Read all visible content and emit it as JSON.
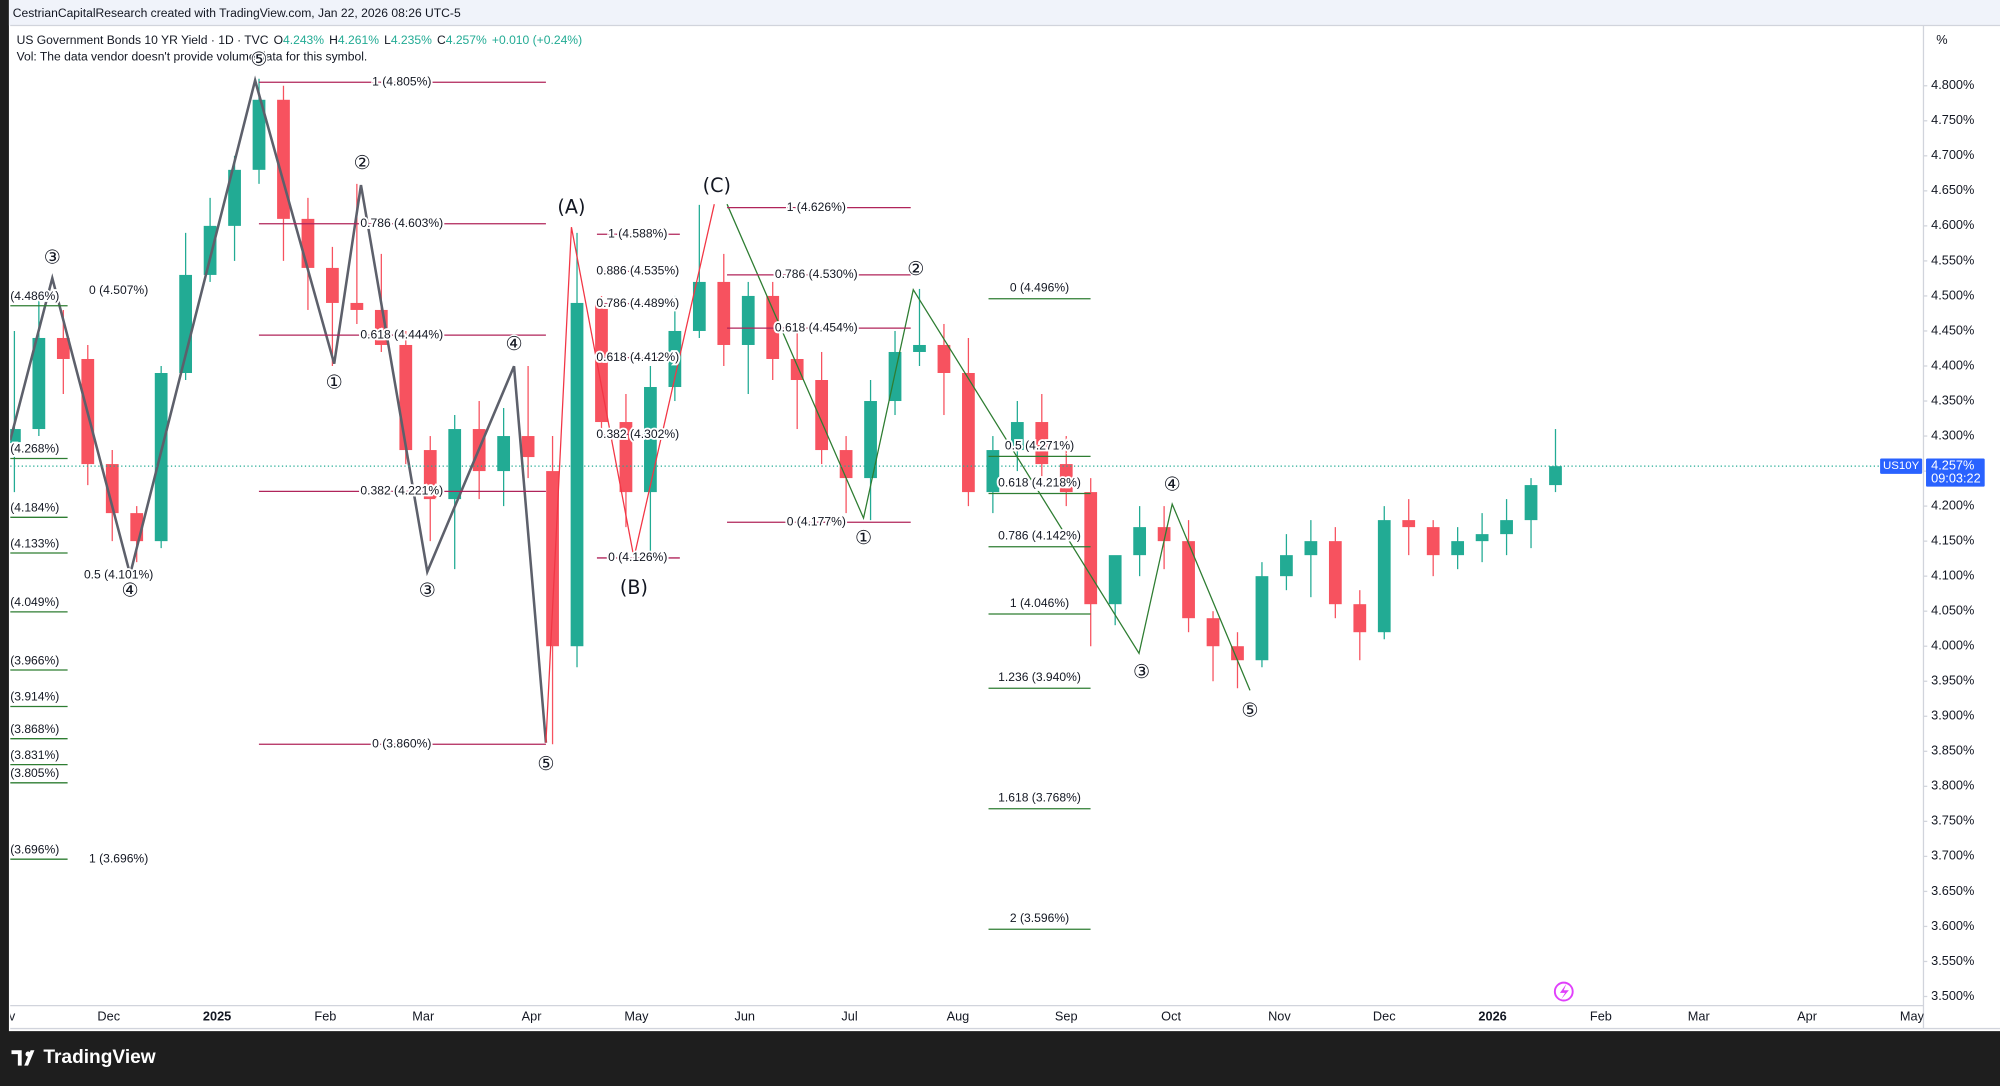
{
  "header": {
    "attribution": "CestrianCapitalResearch created with TradingView.com, Jan 22, 2026 08:26 UTC-5"
  },
  "footer": {
    "brand": "TradingView"
  },
  "chart_data": {
    "type": "candlestick",
    "title": "US Government Bonds 10 YR Yield · 1D · TVC",
    "ohlc_legend": [
      {
        "key": "O",
        "value": "4.243%"
      },
      {
        "key": "H",
        "value": "4.261%"
      },
      {
        "key": "L",
        "value": "4.235%"
      },
      {
        "key": "C",
        "value": "4.257%"
      }
    ],
    "change": "+0.010 (+0.24%)",
    "note": "Vol: The data vendor doesn't provide volume data for this symbol.",
    "axis_unit": "%",
    "symbol": "US10Y",
    "last_price": {
      "value": 4.257,
      "label": "4.257%"
    },
    "countdown": "09:03:22",
    "up_color": "#22ab94",
    "down_color": "#f7525f",
    "x": [
      3,
      10,
      17,
      24,
      31,
      38,
      45,
      52,
      59,
      66,
      73,
      80,
      87,
      94,
      101,
      108,
      115,
      122,
      129,
      136,
      143,
      150,
      157,
      164,
      171,
      178,
      185,
      192,
      199,
      206,
      213,
      220,
      227,
      234,
      241,
      248,
      255,
      262,
      269,
      276,
      283,
      290,
      297,
      304,
      311,
      318,
      325,
      332,
      339,
      346,
      353,
      360,
      367,
      374,
      381,
      388,
      395,
      402,
      409,
      416,
      423,
      430,
      437,
      444
    ],
    "open": [
      4.29,
      4.31,
      4.44,
      4.41,
      4.26,
      4.19,
      4.15,
      4.39,
      4.53,
      4.6,
      4.68,
      4.78,
      4.61,
      4.54,
      4.49,
      4.48,
      4.43,
      4.28,
      4.21,
      4.31,
      4.25,
      4.3,
      4.25,
      4.0,
      4.49,
      4.32,
      4.22,
      4.37,
      4.45,
      4.52,
      4.43,
      4.5,
      4.41,
      4.38,
      4.28,
      4.24,
      4.35,
      4.42,
      4.43,
      4.39,
      4.22,
      4.28,
      4.32,
      4.26,
      4.22,
      4.06,
      4.13,
      4.17,
      4.15,
      4.04,
      4.0,
      3.98,
      4.1,
      4.13,
      4.15,
      4.06,
      4.02,
      4.18,
      4.17,
      4.13,
      4.15,
      4.16,
      4.18,
      4.23
    ],
    "high": [
      4.45,
      4.5,
      4.48,
      4.43,
      4.28,
      4.2,
      4.4,
      4.59,
      4.64,
      4.7,
      4.81,
      4.8,
      4.64,
      4.57,
      4.66,
      4.56,
      4.45,
      4.3,
      4.33,
      4.35,
      4.34,
      4.4,
      4.3,
      4.59,
      4.5,
      4.36,
      4.4,
      4.5,
      4.63,
      4.56,
      4.52,
      4.52,
      4.45,
      4.42,
      4.3,
      4.38,
      4.45,
      4.51,
      4.46,
      4.44,
      4.3,
      4.35,
      4.36,
      4.3,
      4.24,
      4.12,
      4.2,
      4.2,
      4.18,
      4.05,
      4.02,
      4.12,
      4.16,
      4.18,
      4.17,
      4.08,
      4.2,
      4.21,
      4.18,
      4.17,
      4.19,
      4.21,
      4.24,
      4.31
    ],
    "low": [
      4.22,
      4.3,
      4.36,
      4.23,
      4.15,
      4.12,
      4.14,
      4.38,
      4.52,
      4.55,
      4.66,
      4.55,
      4.48,
      4.4,
      4.46,
      4.42,
      4.26,
      4.15,
      4.11,
      4.21,
      4.2,
      4.24,
      3.86,
      3.97,
      4.3,
      4.17,
      4.13,
      4.35,
      4.44,
      4.4,
      4.36,
      4.38,
      4.31,
      4.26,
      4.19,
      4.18,
      4.33,
      4.4,
      4.33,
      4.2,
      4.19,
      4.25,
      4.24,
      4.2,
      4.0,
      4.03,
      4.1,
      4.11,
      4.02,
      3.95,
      3.94,
      3.97,
      4.08,
      4.07,
      4.04,
      3.98,
      4.01,
      4.13,
      4.1,
      4.11,
      4.12,
      4.13,
      4.14,
      4.22
    ],
    "close": [
      4.31,
      4.44,
      4.41,
      4.26,
      4.19,
      4.15,
      4.39,
      4.53,
      4.6,
      4.68,
      4.78,
      4.61,
      4.54,
      4.49,
      4.48,
      4.43,
      4.28,
      4.21,
      4.31,
      4.25,
      4.3,
      4.27,
      4.0,
      4.49,
      4.32,
      4.22,
      4.37,
      4.45,
      4.52,
      4.43,
      4.5,
      4.41,
      4.38,
      4.28,
      4.24,
      4.35,
      4.42,
      4.43,
      4.39,
      4.22,
      4.28,
      4.32,
      4.26,
      4.22,
      4.06,
      4.13,
      4.17,
      4.15,
      4.04,
      4.0,
      3.98,
      4.1,
      4.13,
      4.15,
      4.06,
      4.02,
      4.18,
      4.17,
      4.13,
      4.15,
      4.16,
      4.18,
      4.23,
      4.257
    ],
    "xlim": [
      1.8,
      549.3
    ],
    "xticks": [
      {
        "value": 0,
        "label": "Nov"
      },
      {
        "value": 30,
        "label": "Dec"
      },
      {
        "value": 61,
        "label": "2025"
      },
      {
        "value": 92,
        "label": "Feb"
      },
      {
        "value": 120,
        "label": "Mar"
      },
      {
        "value": 151,
        "label": "Apr"
      },
      {
        "value": 181,
        "label": "May"
      },
      {
        "value": 212,
        "label": "Jun"
      },
      {
        "value": 242,
        "label": "Jul"
      },
      {
        "value": 273,
        "label": "Aug"
      },
      {
        "value": 304,
        "label": "Sep"
      },
      {
        "value": 334,
        "label": "Oct"
      },
      {
        "value": 365,
        "label": "Nov"
      },
      {
        "value": 395,
        "label": "Dec"
      },
      {
        "value": 426,
        "label": "2026"
      },
      {
        "value": 457,
        "label": "Feb"
      },
      {
        "value": 485,
        "label": "Mar"
      },
      {
        "value": 516,
        "label": "Apr"
      },
      {
        "value": 546,
        "label": "May"
      }
    ],
    "ylim": [
      3.487,
      4.886
    ],
    "yticks": [
      {
        "value": 3.5,
        "label": "3.500%"
      },
      {
        "value": 3.55,
        "label": "3.550%"
      },
      {
        "value": 3.6,
        "label": "3.600%"
      },
      {
        "value": 3.65,
        "label": "3.650%"
      },
      {
        "value": 3.7,
        "label": "3.700%"
      },
      {
        "value": 3.75,
        "label": "3.750%"
      },
      {
        "value": 3.8,
        "label": "3.800%"
      },
      {
        "value": 3.85,
        "label": "3.850%"
      },
      {
        "value": 3.9,
        "label": "3.900%"
      },
      {
        "value": 3.95,
        "label": "3.950%"
      },
      {
        "value": 4.0,
        "label": "4.000%"
      },
      {
        "value": 4.05,
        "label": "4.050%"
      },
      {
        "value": 4.1,
        "label": "4.100%"
      },
      {
        "value": 4.15,
        "label": "4.150%"
      },
      {
        "value": 4.2,
        "label": "4.200%"
      },
      {
        "value": 4.25,
        "label": "4.250%"
      },
      {
        "value": 4.3,
        "label": "4.300%"
      },
      {
        "value": 4.35,
        "label": "4.350%"
      },
      {
        "value": 4.4,
        "label": "4.400%"
      },
      {
        "value": 4.45,
        "label": "4.450%"
      },
      {
        "value": 4.5,
        "label": "4.500%"
      },
      {
        "value": 4.55,
        "label": "4.550%"
      },
      {
        "value": 4.6,
        "label": "4.600%"
      },
      {
        "value": 4.65,
        "label": "4.650%"
      },
      {
        "value": 4.7,
        "label": "4.700%"
      },
      {
        "value": 4.75,
        "label": "4.750%"
      },
      {
        "value": 4.8,
        "label": "4.800%"
      }
    ],
    "grid": false,
    "fib_levels": [
      {
        "color": "#b0245a",
        "levels": [
          {
            "value": 4.805,
            "label": "1 (4.805%)"
          },
          {
            "value": 4.603,
            "label": "0.786 (4.603%)"
          },
          {
            "value": 4.444,
            "label": "0.618 (4.444%)"
          },
          {
            "value": 4.221,
            "label": "0.382 (4.221%)"
          },
          {
            "value": 3.86,
            "label": "0 (3.860%)"
          }
        ]
      },
      {
        "color": "#b0245a",
        "levels": [
          {
            "value": 4.507,
            "label": "0 (4.507%)"
          },
          {
            "value": 4.101,
            "label": "0.5 (4.101%)"
          },
          {
            "value": 3.696,
            "label": "1 (3.696%)"
          }
        ]
      },
      {
        "color": "#2e7d32",
        "levels": [
          {
            "value": 4.486,
            "label": "(4.486%)"
          },
          {
            "value": 4.268,
            "label": "(4.268%)"
          },
          {
            "value": 4.184,
            "label": "(4.184%)"
          },
          {
            "value": 4.133,
            "label": "(4.133%)"
          },
          {
            "value": 4.049,
            "label": "(4.049%)"
          },
          {
            "value": 3.966,
            "label": "(3.966%)"
          },
          {
            "value": 3.914,
            "label": "(3.914%)"
          },
          {
            "value": 3.868,
            "label": "(3.868%)"
          },
          {
            "value": 3.831,
            "label": "(3.831%)"
          },
          {
            "value": 3.805,
            "label": "(3.805%)"
          },
          {
            "value": 3.696,
            "label": "(3.696%)"
          }
        ]
      },
      {
        "color": "#b0245a",
        "levels": [
          {
            "value": 4.588,
            "label": "1 (4.588%)"
          },
          {
            "value": 4.535,
            "label": "0.886 (4.535%)"
          },
          {
            "value": 4.489,
            "label": "0.786 (4.489%)"
          },
          {
            "value": 4.412,
            "label": "0.618 (4.412%)"
          },
          {
            "value": 4.302,
            "label": "0.382 (4.302%)"
          },
          {
            "value": 4.126,
            "label": "0 (4.126%)"
          }
        ]
      },
      {
        "color": "#b0245a",
        "levels": [
          {
            "value": 4.626,
            "label": "1 (4.626%)"
          },
          {
            "value": 4.53,
            "label": "0.786 (4.530%)"
          },
          {
            "value": 4.454,
            "label": "0.618 (4.454%)"
          },
          {
            "value": 4.177,
            "label": "0 (4.177%)"
          }
        ]
      },
      {
        "color": "#2e7d32",
        "levels": [
          {
            "value": 4.496,
            "label": "0 (4.496%)"
          },
          {
            "value": 4.271,
            "label": "0.5 (4.271%)"
          },
          {
            "value": 4.218,
            "label": "0.618 (4.218%)"
          },
          {
            "value": 4.142,
            "label": "0.786 (4.142%)"
          },
          {
            "value": 4.046,
            "label": "1 (4.046%)"
          },
          {
            "value": 3.94,
            "label": "1.236 (3.940%)"
          },
          {
            "value": 3.768,
            "label": "1.618 (3.768%)"
          },
          {
            "value": 3.596,
            "label": "2 (3.596%)"
          }
        ]
      }
    ],
    "wave_labels": [
      {
        "color": "#131722",
        "labels": [
          "③",
          "④",
          "⑤",
          "①",
          "②",
          "③",
          "④",
          "⑤"
        ]
      },
      {
        "color": "#f23645",
        "labels": [
          "(A)",
          "(B)",
          "(C)"
        ]
      },
      {
        "color": "#2e7d32",
        "labels": [
          "①",
          "②",
          "③",
          "④",
          "⑤"
        ]
      }
    ]
  }
}
